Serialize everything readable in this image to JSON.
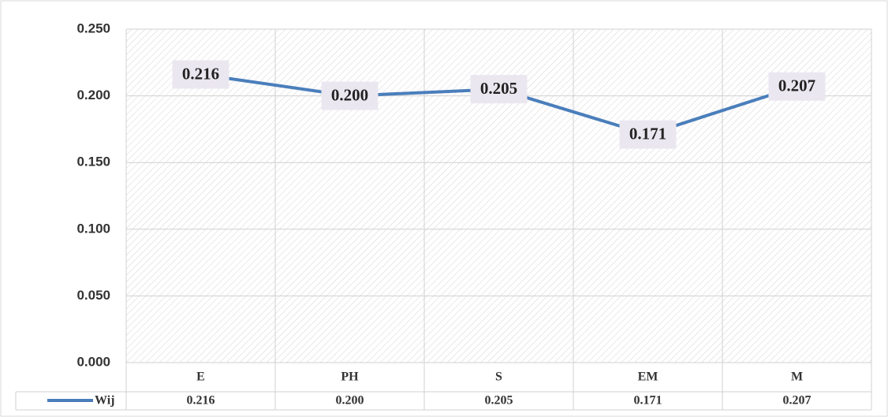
{
  "chart_data": {
    "type": "line",
    "categories": [
      "E",
      "PH",
      "S",
      "EM",
      "M"
    ],
    "series": [
      {
        "name": "Wij",
        "color": "#4a7ebb",
        "values": [
          0.216,
          0.2,
          0.205,
          0.171,
          0.207
        ],
        "value_labels": [
          "0.216",
          "0.200",
          "0.205",
          "0.171",
          "0.207"
        ]
      }
    ],
    "ylim": [
      0,
      0.25
    ],
    "yticks": [
      {
        "value": 0,
        "label": "0.000"
      },
      {
        "value": 0.05,
        "label": "0.050"
      },
      {
        "value": 0.1,
        "label": "0.100"
      },
      {
        "value": 0.15,
        "label": "0.150"
      },
      {
        "value": 0.2,
        "label": "0.200"
      },
      {
        "value": 0.25,
        "label": "0.250"
      }
    ],
    "grid": true
  }
}
